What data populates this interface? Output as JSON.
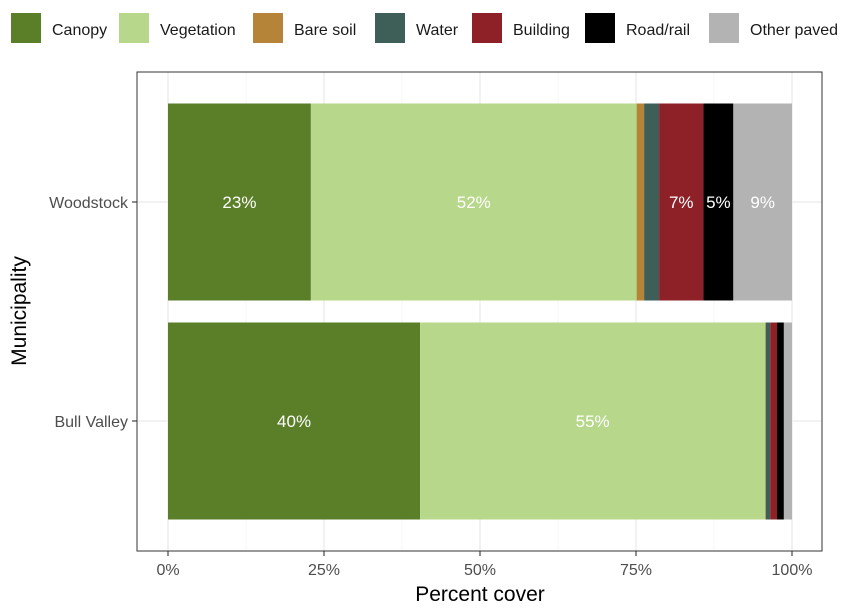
{
  "chart_data": {
    "type": "bar",
    "orientation": "horizontal",
    "stacked": true,
    "xlabel": "Percent cover",
    "ylabel": "Municipality",
    "xlim": [
      0,
      100
    ],
    "x_ticks": [
      "0%",
      "25%",
      "50%",
      "75%",
      "100%"
    ],
    "x_tick_values": [
      0,
      25,
      50,
      75,
      100
    ],
    "categories": [
      "Woodstock",
      "Bull Valley"
    ],
    "legend_position": "top",
    "grid": true,
    "series": [
      {
        "name": "Canopy",
        "color": "#5a7f28",
        "values": [
          22.9,
          40.4
        ],
        "labels": [
          "23%",
          "40%"
        ]
      },
      {
        "name": "Vegetation",
        "color": "#b7d88a",
        "values": [
          52.2,
          55.3
        ],
        "labels": [
          "52%",
          "55%"
        ]
      },
      {
        "name": "Bare soil",
        "color": "#b68439",
        "values": [
          1.2,
          0.1
        ],
        "labels": [
          "",
          ""
        ]
      },
      {
        "name": "Water",
        "color": "#3e5e58",
        "values": [
          2.4,
          0.7
        ],
        "labels": [
          "",
          ""
        ]
      },
      {
        "name": "Building",
        "color": "#8d2127",
        "values": [
          7.1,
          1.1
        ],
        "labels": [
          "7%",
          ""
        ]
      },
      {
        "name": "Road/rail",
        "color": "#000000",
        "values": [
          4.8,
          1.1
        ],
        "labels": [
          "5%",
          ""
        ]
      },
      {
        "name": "Other paved",
        "color": "#b3b3b3",
        "values": [
          9.4,
          1.3
        ],
        "labels": [
          "9%",
          ""
        ]
      }
    ]
  }
}
